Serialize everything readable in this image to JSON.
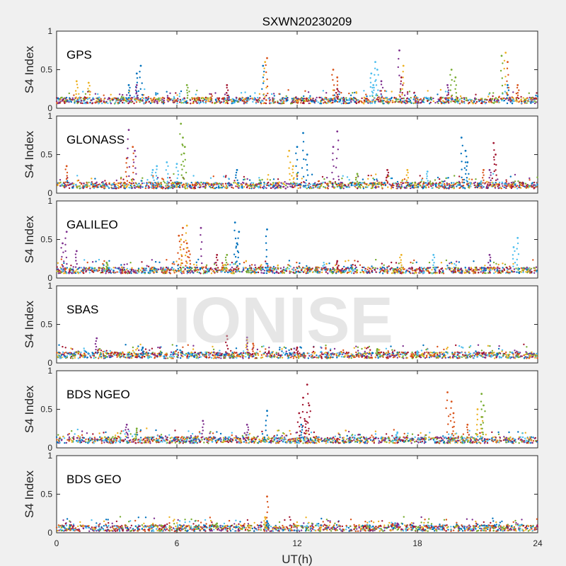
{
  "figure": {
    "title": "SXWN20230209",
    "xlabel": "UT(h)",
    "watermark": "IONISE",
    "background": "#f0f0f0"
  },
  "colors": {
    "blue": "#0072BD",
    "orange": "#D95319",
    "yellow": "#EDB120",
    "purple": "#7E2F8E",
    "green": "#77AC30",
    "cyan": "#4DBEEE",
    "red": "#A2142F"
  },
  "chart_data": [
    {
      "type": "scatter",
      "label": "GPS",
      "ylabel": "S4 Index",
      "xlim": [
        0,
        24
      ],
      "ylim": [
        0,
        1
      ],
      "yticks": [
        0,
        0.5,
        1
      ],
      "xticks": [
        0,
        6,
        12,
        18,
        24
      ],
      "grid": false,
      "base": 0.1,
      "series": [
        {
          "color": "blue",
          "points": [
            [
              4.2,
              0.55
            ],
            [
              4.0,
              0.45
            ],
            [
              3.6,
              0.3
            ],
            [
              10.3,
              0.55
            ],
            [
              22.5,
              0.3
            ]
          ]
        },
        {
          "color": "orange",
          "points": [
            [
              10.5,
              0.65
            ],
            [
              13.8,
              0.5
            ],
            [
              14.0,
              0.4
            ],
            [
              22.5,
              0.6
            ],
            [
              23.0,
              0.3
            ]
          ]
        },
        {
          "color": "yellow",
          "points": [
            [
              1.0,
              0.35
            ],
            [
              1.6,
              0.33
            ],
            [
              10.4,
              0.6
            ],
            [
              17.3,
              0.55
            ],
            [
              22.4,
              0.72
            ]
          ]
        },
        {
          "color": "purple",
          "points": [
            [
              17.1,
              0.75
            ],
            [
              4.0,
              0.3
            ],
            [
              19.5,
              0.3
            ],
            [
              16.2,
              0.35
            ]
          ]
        },
        {
          "color": "green",
          "points": [
            [
              22.2,
              0.68
            ],
            [
              19.7,
              0.5
            ],
            [
              19.9,
              0.4
            ],
            [
              6.5,
              0.3
            ]
          ]
        },
        {
          "color": "cyan",
          "points": [
            [
              15.9,
              0.6
            ],
            [
              15.7,
              0.45
            ],
            [
              15.8,
              0.3
            ],
            [
              16.0,
              0.5
            ]
          ]
        },
        {
          "color": "red",
          "points": [
            [
              17.2,
              0.4
            ],
            [
              8.5,
              0.3
            ],
            [
              14.0,
              0.25
            ]
          ]
        }
      ]
    },
    {
      "type": "scatter",
      "label": "GLONASS",
      "ylabel": "S4 Index",
      "xlim": [
        0,
        24
      ],
      "ylim": [
        0,
        1
      ],
      "yticks": [
        0,
        0.5,
        1
      ],
      "xticks": [
        0,
        6,
        12,
        18,
        24
      ],
      "grid": false,
      "base": 0.1,
      "series": [
        {
          "color": "blue",
          "points": [
            [
              12.3,
              0.78
            ],
            [
              12.0,
              0.6
            ],
            [
              12.5,
              0.5
            ],
            [
              20.2,
              0.72
            ],
            [
              20.4,
              0.55
            ],
            [
              20.5,
              0.4
            ],
            [
              9.0,
              0.3
            ]
          ]
        },
        {
          "color": "orange",
          "points": [
            [
              3.8,
              0.6
            ],
            [
              3.5,
              0.45
            ],
            [
              0.5,
              0.35
            ],
            [
              21.3,
              0.3
            ]
          ]
        },
        {
          "color": "yellow",
          "points": [
            [
              11.6,
              0.55
            ],
            [
              11.8,
              0.35
            ],
            [
              17.5,
              0.3
            ]
          ]
        },
        {
          "color": "purple",
          "points": [
            [
              3.6,
              0.82
            ],
            [
              3.9,
              0.55
            ],
            [
              14.0,
              0.8
            ],
            [
              13.8,
              0.6
            ],
            [
              21.6,
              0.3
            ]
          ]
        },
        {
          "color": "green",
          "points": [
            [
              6.2,
              0.9
            ],
            [
              6.3,
              0.72
            ],
            [
              6.4,
              0.6
            ],
            [
              15.0,
              0.25
            ]
          ]
        },
        {
          "color": "cyan",
          "points": [
            [
              5.0,
              0.35
            ],
            [
              5.5,
              0.4
            ],
            [
              6.0,
              0.38
            ],
            [
              4.8,
              0.3
            ],
            [
              18.5,
              0.28
            ]
          ]
        },
        {
          "color": "red",
          "points": [
            [
              21.8,
              0.65
            ],
            [
              21.9,
              0.5
            ],
            [
              16.5,
              0.3
            ]
          ]
        }
      ]
    },
    {
      "type": "scatter",
      "label": "GALILEO",
      "ylabel": "S4 Index",
      "xlim": [
        0,
        24
      ],
      "ylim": [
        0,
        1
      ],
      "yticks": [
        0,
        0.5,
        1
      ],
      "xticks": [
        0,
        6,
        12,
        18,
        24
      ],
      "grid": false,
      "base": 0.1,
      "series": [
        {
          "color": "blue",
          "points": [
            [
              8.9,
              0.72
            ],
            [
              9.1,
              0.6
            ],
            [
              10.5,
              0.63
            ],
            [
              9.0,
              0.45
            ]
          ]
        },
        {
          "color": "orange",
          "points": [
            [
              6.3,
              0.65
            ],
            [
              6.1,
              0.55
            ],
            [
              6.5,
              0.45
            ],
            [
              6.6,
              0.35
            ]
          ]
        },
        {
          "color": "yellow",
          "points": [
            [
              6.5,
              0.68
            ],
            [
              6.2,
              0.5
            ],
            [
              17.2,
              0.3
            ]
          ]
        },
        {
          "color": "purple",
          "points": [
            [
              0.5,
              0.6
            ],
            [
              0.3,
              0.45
            ],
            [
              1.0,
              0.35
            ],
            [
              7.2,
              0.65
            ],
            [
              21.6,
              0.3
            ]
          ]
        },
        {
          "color": "green",
          "points": [
            [
              8.5,
              0.3
            ],
            [
              2.5,
              0.2
            ]
          ]
        },
        {
          "color": "cyan",
          "points": [
            [
              23.0,
              0.52
            ],
            [
              22.8,
              0.4
            ],
            [
              18.8,
              0.3
            ]
          ]
        },
        {
          "color": "red",
          "points": [
            [
              8.0,
              0.3
            ],
            [
              14.0,
              0.22
            ]
          ]
        }
      ]
    },
    {
      "type": "scatter",
      "label": "SBAS",
      "ylabel": "S4 Index",
      "xlim": [
        0,
        24
      ],
      "ylim": [
        0,
        1
      ],
      "yticks": [
        0,
        0.5,
        1
      ],
      "xticks": [
        0,
        6,
        12,
        18,
        24
      ],
      "grid": false,
      "base": 0.1,
      "series": [
        {
          "color": "blue",
          "points": [
            [
              4.3,
              0.2
            ]
          ]
        },
        {
          "color": "orange",
          "points": [
            [
              9.8,
              0.25
            ]
          ]
        },
        {
          "color": "yellow",
          "points": [
            [
              9.5,
              0.3
            ]
          ]
        },
        {
          "color": "purple",
          "points": [
            [
              2.0,
              0.32
            ],
            [
              9.5,
              0.33
            ]
          ]
        },
        {
          "color": "green",
          "points": [
            [
              16.0,
              0.18
            ]
          ]
        },
        {
          "color": "cyan",
          "points": [
            [
              18.0,
              0.15
            ]
          ]
        },
        {
          "color": "red",
          "points": [
            [
              8.5,
              0.35
            ],
            [
              12.0,
              0.2
            ]
          ]
        }
      ]
    },
    {
      "type": "scatter",
      "label": "BDS NGEO",
      "ylabel": "S4 Index",
      "xlim": [
        0,
        24
      ],
      "ylim": [
        0,
        1
      ],
      "yticks": [
        0,
        0.5,
        1
      ],
      "xticks": [
        0,
        6,
        12,
        18,
        24
      ],
      "grid": false,
      "base": 0.1,
      "series": [
        {
          "color": "blue",
          "points": [
            [
              10.5,
              0.48
            ],
            [
              12.2,
              0.3
            ]
          ]
        },
        {
          "color": "orange",
          "points": [
            [
              19.5,
              0.72
            ],
            [
              19.7,
              0.6
            ],
            [
              19.8,
              0.45
            ],
            [
              20.5,
              0.3
            ]
          ]
        },
        {
          "color": "yellow",
          "points": [
            [
              21.0,
              0.5
            ],
            [
              21.2,
              0.4
            ]
          ]
        },
        {
          "color": "purple",
          "points": [
            [
              3.5,
              0.3
            ],
            [
              7.3,
              0.35
            ],
            [
              9.5,
              0.3
            ]
          ]
        },
        {
          "color": "green",
          "points": [
            [
              21.2,
              0.7
            ],
            [
              21.3,
              0.55
            ],
            [
              4.0,
              0.25
            ]
          ]
        },
        {
          "color": "cyan",
          "points": [
            [
              17.0,
              0.2
            ]
          ]
        },
        {
          "color": "red",
          "points": [
            [
              12.5,
              0.82
            ],
            [
              12.3,
              0.65
            ],
            [
              12.6,
              0.55
            ],
            [
              12.1,
              0.45
            ],
            [
              12.4,
              0.35
            ]
          ]
        }
      ]
    },
    {
      "type": "scatter",
      "label": "BDS GEO",
      "ylabel": "S4 Index",
      "xlim": [
        0,
        24
      ],
      "ylim": [
        0,
        1
      ],
      "yticks": [
        0,
        0.5,
        1
      ],
      "xticks": [
        0,
        6,
        12,
        18,
        24
      ],
      "grid": false,
      "base": 0.06,
      "series": [
        {
          "color": "blue",
          "points": [
            [
              10.5,
              0.15
            ]
          ]
        },
        {
          "color": "orange",
          "points": [
            [
              10.5,
              0.47
            ]
          ]
        },
        {
          "color": "yellow",
          "points": [
            [
              10.4,
              0.2
            ]
          ]
        },
        {
          "color": "purple",
          "points": [
            [
              17.0,
              0.12
            ]
          ]
        },
        {
          "color": "green",
          "points": [
            [
              8.0,
              0.12
            ]
          ]
        },
        {
          "color": "cyan",
          "points": []
        },
        {
          "color": "red",
          "points": []
        }
      ]
    }
  ]
}
